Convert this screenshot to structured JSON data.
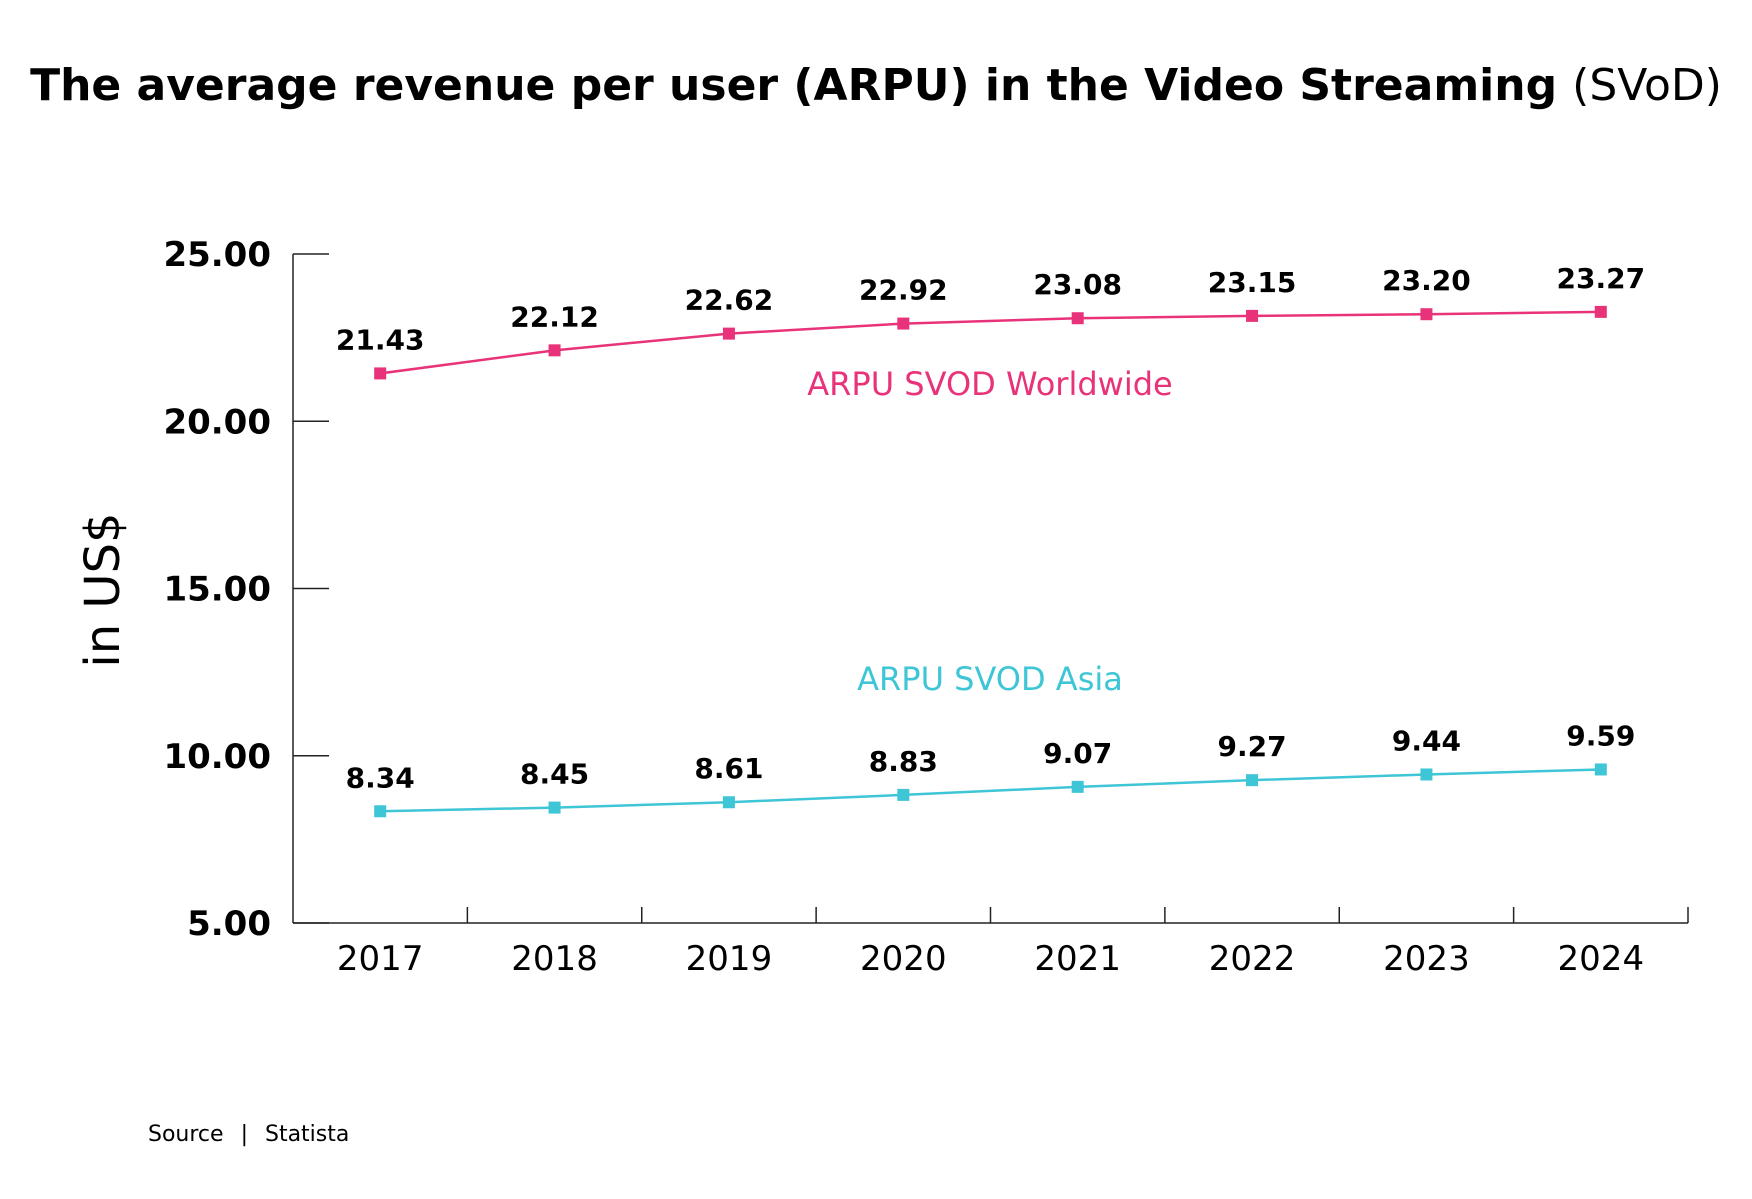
{
  "chart_data": {
    "type": "line",
    "title": "The average revenue per user (ARPU) in the Video Streaming",
    "title_suffix": "(SVoD)",
    "ylabel": "in US$",
    "xlabel": "",
    "categories": [
      "2017",
      "2018",
      "2019",
      "2020",
      "2021",
      "2022",
      "2023",
      "2024"
    ],
    "y_ticks": [
      "25.00",
      "20.00",
      "15.00",
      "10.00",
      "5.00"
    ],
    "ylim": [
      5,
      25
    ],
    "grid": false,
    "series": [
      {
        "name": "ARPU SVOD Worldwide",
        "color": "#e8337a",
        "values": [
          21.43,
          22.12,
          22.62,
          22.92,
          23.08,
          23.15,
          23.2,
          23.27
        ],
        "labels": [
          "21.43",
          "22.12",
          "22.62",
          "22.92",
          "23.08",
          "23.15",
          "23.20",
          "23.27"
        ]
      },
      {
        "name": "ARPU SVOD Asia",
        "color": "#3ec5d6",
        "values": [
          8.34,
          8.45,
          8.61,
          8.83,
          9.07,
          9.27,
          9.44,
          9.59
        ],
        "labels": [
          "8.34",
          "8.45",
          "8.61",
          "8.83",
          "9.07",
          "9.27",
          "9.44",
          "9.59"
        ]
      }
    ]
  },
  "source": {
    "label": "Source",
    "separator": "|",
    "name": "Statista"
  }
}
